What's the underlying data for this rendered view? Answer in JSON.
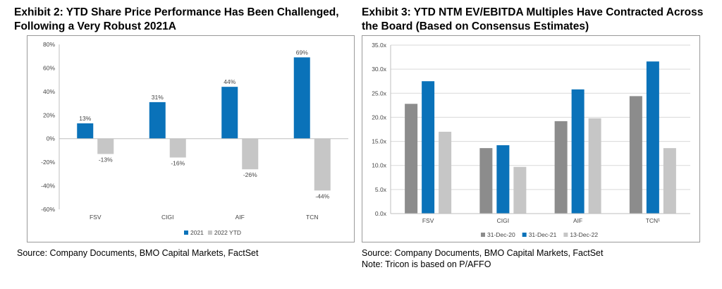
{
  "exhibit2": {
    "title_line1": "Exhibit 2: YTD Share Price Performance Has Been Challenged,",
    "title_line2": "Following a Very Robust 2021A",
    "source": "Source: Company Documents, BMO Capital Markets, FactSet"
  },
  "exhibit3": {
    "title_line1": "Exhibit 3: YTD NTM EV/EBITDA Multiples Have Contracted Across",
    "title_line2": "the Board (Based on Consensus Estimates)",
    "source": "Source: Company Documents, BMO Capital Markets, FactSet",
    "note": "Note: Tricon is based on P/AFFO"
  },
  "chart_data": [
    {
      "type": "bar",
      "title": "Exhibit 2: YTD Share Price Performance Has Been Challenged, Following a Very Robust 2021A",
      "categories": [
        "FSV",
        "CIGI",
        "AIF",
        "TCN"
      ],
      "series": [
        {
          "name": "2021",
          "values": [
            13,
            31,
            44,
            69
          ],
          "labels": [
            "13%",
            "31%",
            "44%",
            "69%"
          ],
          "color": "#0a72b9"
        },
        {
          "name": "2022 YTD",
          "values": [
            -13,
            -16,
            -26,
            -44
          ],
          "labels": [
            "-13%",
            "-16%",
            "-26%",
            "-44%"
          ],
          "color": "#c6c6c6"
        }
      ],
      "ylim": [
        -60,
        80
      ],
      "yticks": [
        -60,
        -40,
        -20,
        0,
        20,
        40,
        60,
        80
      ],
      "ytick_labels": [
        "-60%",
        "-40%",
        "-20%",
        "0%",
        "20%",
        "40%",
        "60%",
        "80%"
      ],
      "grid": false,
      "legend": "bottom-right"
    },
    {
      "type": "bar",
      "title": "Exhibit 3: YTD NTM EV/EBITDA Multiples Have Contracted Across the Board (Based on Consensus Estimates)",
      "categories": [
        "FSV",
        "CIGI",
        "AIF",
        "TCN¹"
      ],
      "series": [
        {
          "name": "31-Dec-20",
          "values": [
            22.8,
            13.6,
            19.2,
            24.4
          ],
          "color": "#8c8c8c"
        },
        {
          "name": "31-Dec-21",
          "values": [
            27.5,
            14.2,
            25.8,
            31.6
          ],
          "color": "#0a72b9"
        },
        {
          "name": "13-Dec-22",
          "values": [
            17.0,
            9.7,
            19.8,
            13.6
          ],
          "color": "#c6c6c6"
        }
      ],
      "ylim": [
        0,
        35
      ],
      "yticks": [
        0,
        5,
        10,
        15,
        20,
        25,
        30,
        35
      ],
      "ytick_labels": [
        "0.0x",
        "5.0x",
        "10.0x",
        "15.0x",
        "20.0x",
        "25.0x",
        "30.0x",
        "35.0x"
      ],
      "grid": true,
      "legend": "bottom-center"
    }
  ]
}
